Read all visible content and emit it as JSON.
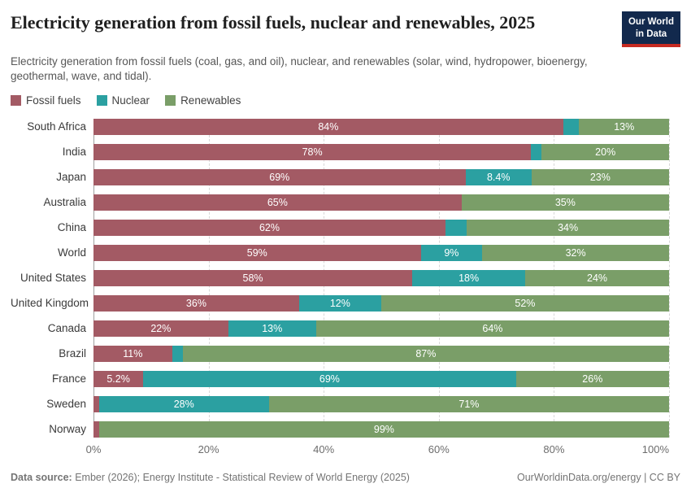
{
  "header": {
    "title": "Electricity generation from fossil fuels, nuclear and renewables, 2025",
    "subtitle": "Electricity generation from fossil fuels (coal, gas, and oil), nuclear, and renewables (solar, wind, hydropower, bioenergy, geothermal, wave, and tidal).",
    "logo": {
      "line1": "Our World",
      "line2": "in Data",
      "bg_color": "#12294d",
      "stripe_color": "#c62a21"
    }
  },
  "legend": [
    {
      "label": "Fossil fuels",
      "color": "#a35a64"
    },
    {
      "label": "Nuclear",
      "color": "#2ba0a1"
    },
    {
      "label": "Renewables",
      "color": "#7a9e68"
    }
  ],
  "chart_data": {
    "type": "bar",
    "orientation": "horizontal",
    "stacked": true,
    "unit": "%",
    "title": "Electricity generation from fossil fuels, nuclear and renewables, 2025",
    "xlabel": "",
    "ylabel": "",
    "xlim": [
      0,
      100
    ],
    "x_ticks": [
      "0%",
      "20%",
      "40%",
      "60%",
      "80%",
      "100%"
    ],
    "grid": true,
    "legend_position": "top",
    "categories": [
      "South Africa",
      "India",
      "Japan",
      "Australia",
      "China",
      "World",
      "United States",
      "United Kingdom",
      "Canada",
      "Brazil",
      "France",
      "Sweden",
      "Norway"
    ],
    "series": [
      {
        "name": "Fossil fuels",
        "color": "#a35a64",
        "values": [
          84,
          78,
          69,
          65,
          62,
          59,
          58,
          36,
          22,
          11,
          5.2,
          1,
          1
        ],
        "labels": [
          "84%",
          "78%",
          "69%",
          "65%",
          "62%",
          "59%",
          "58%",
          "36%",
          "22%",
          "11%",
          "5.2%",
          "",
          ""
        ]
      },
      {
        "name": "Nuclear",
        "color": "#2ba0a1",
        "values": [
          3,
          2,
          8.4,
          0,
          4,
          9,
          18,
          12,
          13,
          2,
          69,
          28,
          0
        ],
        "labels": [
          "",
          "",
          "8.4%",
          "",
          "",
          "9%",
          "18%",
          "12%",
          "13%",
          "",
          "69%",
          "28%",
          ""
        ]
      },
      {
        "name": "Renewables",
        "color": "#7a9e68",
        "values": [
          13,
          20,
          23,
          35,
          34,
          32,
          24,
          52,
          64,
          87,
          26,
          71,
          99
        ],
        "labels": [
          "13%",
          "20%",
          "23%",
          "35%",
          "34%",
          "32%",
          "24%",
          "52%",
          "64%",
          "87%",
          "26%",
          "71%",
          "99%"
        ]
      }
    ]
  },
  "footer": {
    "source_label": "Data source:",
    "source_text": " Ember (2026); Energy Institute - Statistical Review of World Energy (2025)",
    "credit": "OurWorldinData.org/energy | CC BY"
  }
}
